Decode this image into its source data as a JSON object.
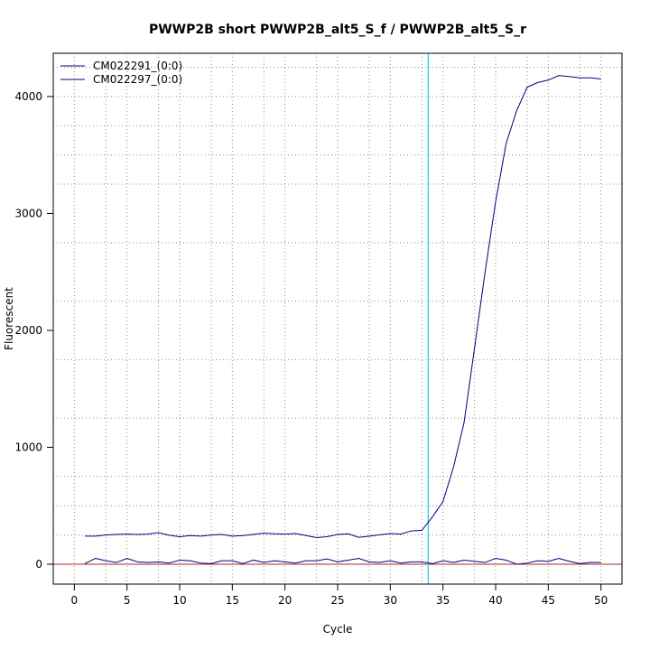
{
  "chart_data": {
    "type": "line",
    "title": "PWWP2B short PWWP2B_alt5_S_f / PWWP2B_alt5_S_r",
    "xlabel": "Cycle",
    "ylabel": "Fluorescent",
    "xlim": [
      -2,
      52
    ],
    "ylim": [
      -170,
      4370
    ],
    "x_ticks": [
      0,
      5,
      10,
      15,
      20,
      25,
      30,
      35,
      40,
      45,
      50
    ],
    "y_ticks": [
      0,
      1000,
      2000,
      3000,
      4000
    ],
    "x_minor_grid": [
      3,
      8,
      13,
      18,
      23,
      28,
      33,
      38,
      43,
      48
    ],
    "y_grid": [
      -250,
      250,
      500,
      750,
      1250,
      1750,
      2250,
      2750,
      3250,
      3500,
      3750,
      4000,
      4250
    ],
    "grid": true,
    "legend_position": "top-left",
    "threshold_cycle": 33.6,
    "baseline_value": 0,
    "x": [
      1,
      2,
      3,
      4,
      5,
      6,
      7,
      8,
      9,
      10,
      11,
      12,
      13,
      14,
      15,
      16,
      17,
      18,
      19,
      20,
      21,
      22,
      23,
      24,
      25,
      26,
      27,
      28,
      29,
      30,
      31,
      32,
      33,
      34,
      35,
      36,
      37,
      38,
      39,
      40,
      41,
      42,
      43,
      44,
      45,
      46,
      47,
      48,
      49,
      50
    ],
    "series": [
      {
        "name": "CM022291_(0:0)",
        "color": "#000080",
        "values": [
          240,
          240,
          250,
          255,
          258,
          255,
          258,
          270,
          248,
          235,
          245,
          240,
          250,
          255,
          240,
          245,
          255,
          265,
          260,
          258,
          262,
          245,
          228,
          235,
          255,
          260,
          230,
          240,
          252,
          262,
          258,
          285,
          290,
          405,
          535,
          830,
          1210,
          1850,
          2500,
          3100,
          3600,
          3880,
          4080,
          4120,
          4140,
          4180,
          4170,
          4160,
          4160,
          4150
        ]
      },
      {
        "name": "CM022297_(0:0)",
        "color": "#000080",
        "values": [
          5,
          50,
          30,
          15,
          50,
          20,
          15,
          20,
          10,
          35,
          30,
          10,
          5,
          30,
          30,
          5,
          35,
          15,
          30,
          20,
          10,
          30,
          30,
          45,
          20,
          35,
          50,
          20,
          15,
          30,
          10,
          20,
          20,
          5,
          30,
          15,
          35,
          25,
          15,
          50,
          35,
          0,
          10,
          30,
          25,
          50,
          25,
          5,
          15,
          15
        ]
      }
    ]
  }
}
